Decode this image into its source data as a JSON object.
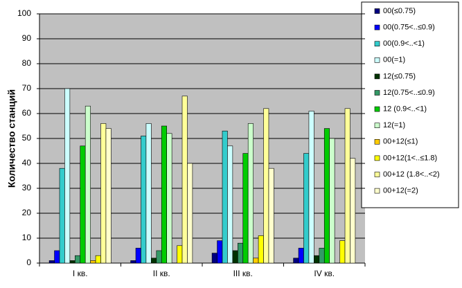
{
  "chart_data": {
    "type": "bar",
    "y_label": "Количество станций",
    "categories": [
      "I кв.",
      "II кв.",
      "III кв.",
      "IV кв."
    ],
    "ylim": [
      0,
      100
    ],
    "yticks": [
      0,
      10,
      20,
      30,
      40,
      50,
      60,
      70,
      80,
      90,
      100
    ],
    "grid": true,
    "legend": "right",
    "series": [
      {
        "name": "00(≤0.75)",
        "color": "#000080",
        "values": [
          1,
          1,
          4,
          2
        ]
      },
      {
        "name": "00(0.75<..≤0.9)",
        "color": "#0000ff",
        "values": [
          5,
          6,
          9,
          6
        ]
      },
      {
        "name": "00(0.9<..<1)",
        "color": "#33cccc",
        "values": [
          38,
          51,
          53,
          44
        ]
      },
      {
        "name": "00(=1)",
        "color": "#ccffff",
        "values": [
          70,
          56,
          47,
          61
        ]
      },
      {
        "name": "12(≤0.75)",
        "color": "#003300",
        "values": [
          1,
          2,
          5,
          3
        ]
      },
      {
        "name": "12(0.75<..≤0.9)",
        "color": "#339966",
        "values": [
          3,
          5,
          8,
          6
        ]
      },
      {
        "name": "12 (0.9<..<1)",
        "color": "#00cc00",
        "values": [
          47,
          55,
          44,
          54
        ]
      },
      {
        "name": "12(=1)",
        "color": "#ccffcc",
        "values": [
          63,
          52,
          56,
          50
        ]
      },
      {
        "name": "00+12(≤1)",
        "color": "#ffcc00",
        "values": [
          1,
          0,
          2,
          0
        ]
      },
      {
        "name": "00+12(1<..≤1.8)",
        "color": "#ffff00",
        "values": [
          3,
          7,
          11,
          9
        ]
      },
      {
        "name": "00+12 (1.8<..<2)",
        "color": "#ffff99",
        "values": [
          56,
          67,
          62,
          62
        ]
      },
      {
        "name": "00+12(=2)",
        "color": "#ffffcc",
        "values": [
          54,
          40,
          38,
          42
        ]
      }
    ]
  }
}
